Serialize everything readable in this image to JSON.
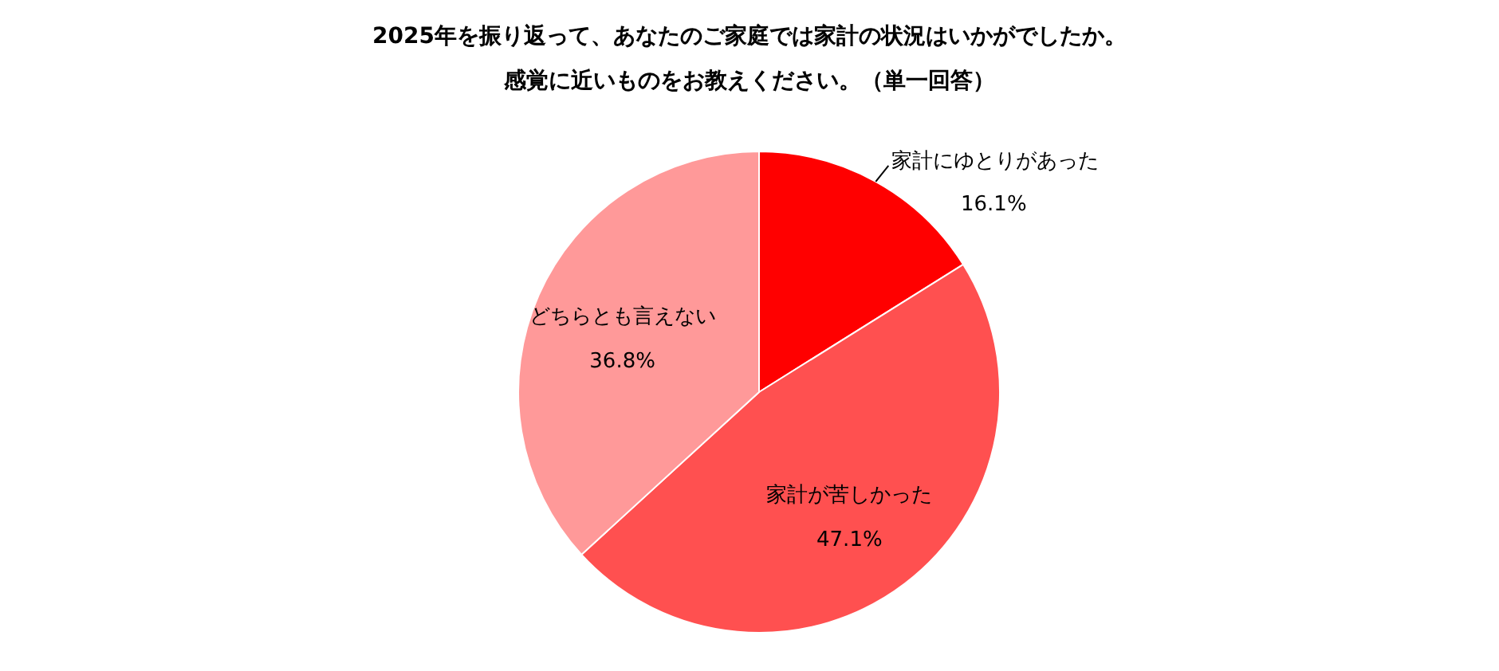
{
  "chart_data": {
    "type": "pie",
    "title": "2025年を振り返って、あなたのご家庭では家計の状況はいかがでしたか。",
    "subtitle": "感覚に近いものをお教えください。（単一回答）",
    "categories": [
      "家計にゆとりがあった",
      "家計が苦しかった",
      "どちらとも言えない"
    ],
    "values": [
      16.1,
      47.1,
      36.8
    ],
    "colors": [
      "#ff0000",
      "#ff5050",
      "#ff9999"
    ],
    "value_labels": [
      "16.1%",
      "47.1%",
      "36.8%"
    ]
  }
}
